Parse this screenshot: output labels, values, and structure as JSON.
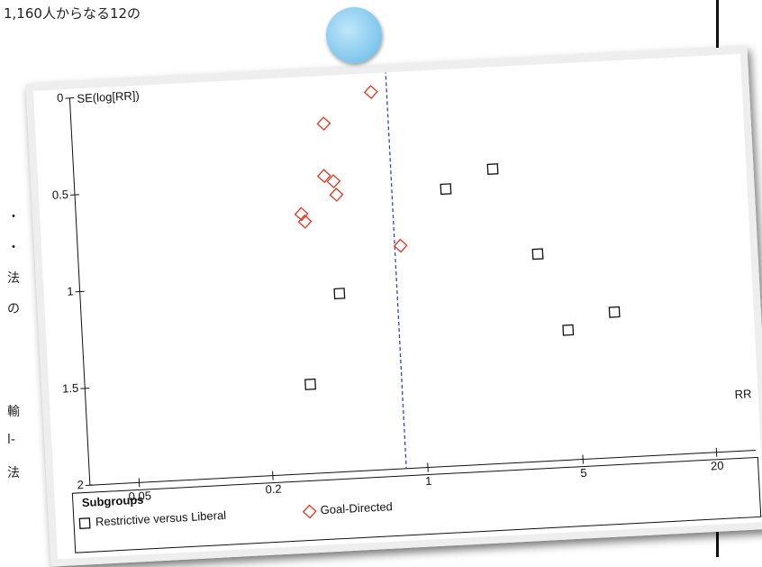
{
  "background_text": {
    "top": "1,160人からなる12の",
    "fragments": [
      "・",
      "・",
      "法",
      "の",
      "輸",
      "l-",
      "法"
    ]
  },
  "chart_data": {
    "type": "scatter",
    "y_label": "SE(log[RR])",
    "x_label": "RR",
    "x_log": true,
    "y_inverted": true,
    "xlim": [
      0.03,
      30
    ],
    "xticks": [
      0.05,
      0.2,
      1,
      5,
      20
    ],
    "ylim": [
      0,
      2
    ],
    "yticks": [
      0,
      0.5,
      1,
      1.5,
      2
    ],
    "pooled_estimate": 0.8,
    "pooled_color": "#3344cc",
    "legend_title": "Subgroups",
    "series": [
      {
        "name": "Restrictive versus Liberal",
        "color": "#111111",
        "marker": "square",
        "x": [
          1.4,
          2.3,
          3.5,
          0.44,
          7.5,
          4.6,
          0.31
        ],
        "values": [
          0.57,
          0.48,
          0.93,
          1.08,
          1.25,
          1.33,
          1.54
        ]
      },
      {
        "name": "Goal-Directed",
        "color": "#e8321e",
        "marker": "diamond",
        "x": [
          0.68,
          0.41,
          0.4,
          0.44,
          0.45,
          0.31,
          0.32,
          0.85
        ],
        "values": [
          0.05,
          0.2,
          0.47,
          0.5,
          0.57,
          0.66,
          0.7,
          0.85
        ]
      }
    ]
  }
}
